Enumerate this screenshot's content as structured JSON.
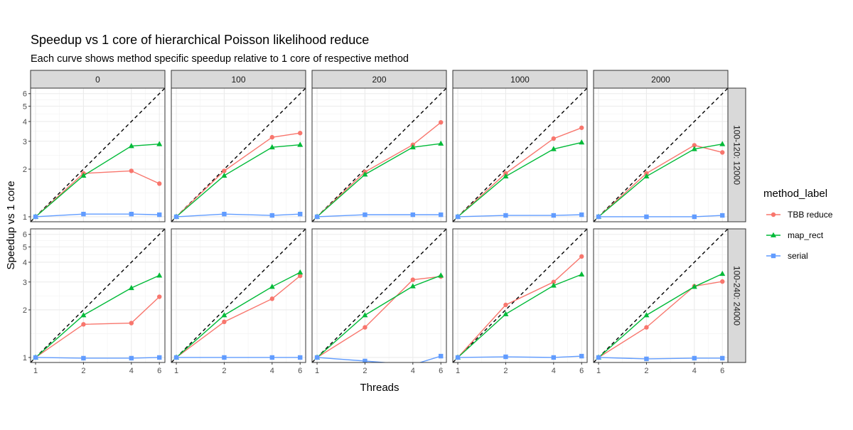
{
  "chart_data": {
    "type": "line",
    "title": "Speedup vs 1 core of hierarchical Poisson likelihood reduce",
    "subtitle": "Each curve shows method specific speedup relative to 1 core of respective method",
    "xlabel": "Threads",
    "ylabel": "Speedup vs 1 core",
    "x": [
      1,
      2,
      4,
      6
    ],
    "x_ticks": [
      1,
      2,
      4,
      6
    ],
    "y_ticks": [
      1,
      2,
      3,
      4,
      5,
      6
    ],
    "x_scale": "log",
    "y_scale": "log",
    "xlim": [
      0.93,
      6.5
    ],
    "ylim": [
      0.93,
      6.5
    ],
    "reference_line": "dashed identity y = x",
    "grid": true,
    "col_facets": [
      "0",
      "100",
      "200",
      "1000",
      "2000"
    ],
    "row_facets": [
      "100-120: 12000",
      "100-240: 24000"
    ],
    "legend": {
      "title": "method_label",
      "position": "right",
      "entries": [
        {
          "name": "TBB reduce",
          "color": "#F8766D",
          "marker": "circle"
        },
        {
          "name": "map_rect",
          "color": "#00BA38",
          "marker": "triangle"
        },
        {
          "name": "serial",
          "color": "#619CFF",
          "marker": "square"
        }
      ]
    },
    "panels": [
      {
        "row": 0,
        "col": 0,
        "series": {
          "TBB reduce": [
            1,
            1.88,
            1.95,
            1.62
          ],
          "map_rect": [
            1,
            1.82,
            2.8,
            2.88
          ],
          "serial": [
            1,
            1.04,
            1.04,
            1.03
          ]
        }
      },
      {
        "row": 0,
        "col": 1,
        "series": {
          "TBB reduce": [
            1,
            1.95,
            3.18,
            3.38
          ],
          "map_rect": [
            1,
            1.82,
            2.75,
            2.85
          ],
          "serial": [
            1,
            1.04,
            1.02,
            1.04
          ]
        }
      },
      {
        "row": 0,
        "col": 2,
        "series": {
          "TBB reduce": [
            1,
            1.92,
            2.85,
            3.95
          ],
          "map_rect": [
            1,
            1.85,
            2.75,
            2.9
          ],
          "serial": [
            1,
            1.03,
            1.03,
            1.03
          ]
        }
      },
      {
        "row": 0,
        "col": 3,
        "series": {
          "TBB reduce": [
            1,
            1.88,
            3.12,
            3.65
          ],
          "map_rect": [
            1,
            1.8,
            2.68,
            2.95
          ],
          "serial": [
            1,
            1.02,
            1.02,
            1.03
          ]
        }
      },
      {
        "row": 0,
        "col": 4,
        "series": {
          "TBB reduce": [
            1,
            1.88,
            2.83,
            2.55
          ],
          "map_rect": [
            1,
            1.8,
            2.68,
            2.88
          ],
          "serial": [
            1,
            1.0,
            1.0,
            1.02
          ]
        }
      },
      {
        "row": 1,
        "col": 0,
        "series": {
          "TBB reduce": [
            1,
            1.62,
            1.65,
            2.42
          ],
          "map_rect": [
            1,
            1.85,
            2.75,
            3.3
          ],
          "serial": [
            1,
            0.99,
            0.99,
            1.0
          ]
        }
      },
      {
        "row": 1,
        "col": 1,
        "series": {
          "TBB reduce": [
            1,
            1.68,
            2.35,
            3.28
          ],
          "map_rect": [
            1,
            1.85,
            2.8,
            3.45
          ],
          "serial": [
            1,
            1.0,
            1.0,
            1.0
          ]
        }
      },
      {
        "row": 1,
        "col": 2,
        "series": {
          "TBB reduce": [
            1,
            1.55,
            3.1,
            3.25
          ],
          "map_rect": [
            1,
            1.85,
            2.82,
            3.3
          ],
          "serial": [
            1,
            0.95,
            0.9,
            1.02
          ]
        }
      },
      {
        "row": 1,
        "col": 3,
        "series": {
          "TBB reduce": [
            1,
            2.15,
            3.0,
            4.35
          ],
          "map_rect": [
            1,
            1.88,
            2.85,
            3.35
          ],
          "serial": [
            1,
            1.01,
            1.0,
            1.02
          ]
        }
      },
      {
        "row": 1,
        "col": 4,
        "series": {
          "TBB reduce": [
            1,
            1.55,
            2.82,
            3.02
          ],
          "map_rect": [
            1,
            1.85,
            2.8,
            3.38
          ],
          "serial": [
            1,
            0.98,
            0.99,
            0.99
          ]
        }
      }
    ]
  }
}
